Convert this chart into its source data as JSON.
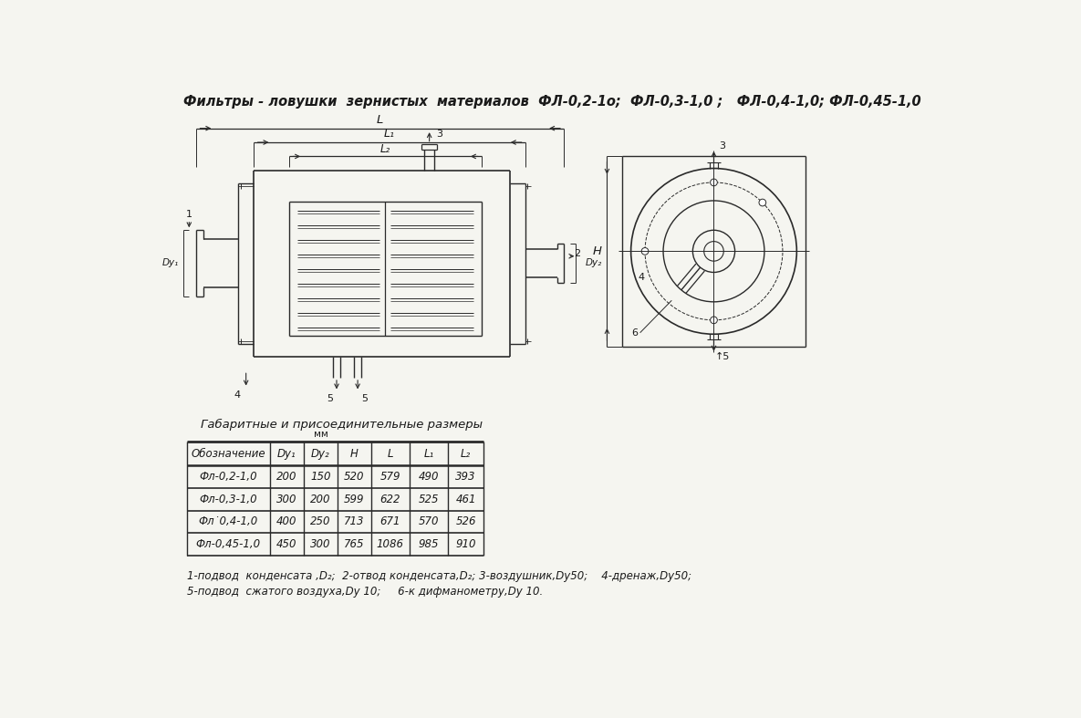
{
  "title": "Фильтры - ловушки  зернистых  материалов  ФЛ-0,2-1о;  ФЛ-0,3-1,0 ;   ФЛ-0,4-1,0; ФЛ-0,45-1,0",
  "table_title": "Габаритные и присоединительные размеры",
  "table_subtitle": "мм",
  "col_headers": [
    "Обозначение",
    "Dy₁",
    "Dy₂",
    "H",
    "L",
    "L₁",
    "L₂"
  ],
  "rows": [
    [
      "Фл-0,2-1,0",
      "200",
      "150",
      "520",
      "579",
      "490",
      "393"
    ],
    [
      "Фл-0,3-1,0",
      "300",
      "200",
      "599",
      "622",
      "525",
      "461"
    ],
    [
      "Фл˙0,4-1,0",
      "400",
      "250",
      "713",
      "671",
      "570",
      "526"
    ],
    [
      "Фл-0,45-1,0",
      "450",
      "300",
      "765",
      "1086",
      "985",
      "910"
    ]
  ],
  "footnote_line1": "1-подвод  конденсата ,D₂;  2-отвод конденсата,D₂; 3-воздушник,Dy50;    4-дренаж,Dy50; ",
  "footnote_line2": "5-подвод  сжатого воздуха,Dy 10;     6-к дифманометру,Dy 10.",
  "bg_color": "#f5f5f0",
  "line_color": "#2a2a2a",
  "text_color": "#1a1a1a"
}
